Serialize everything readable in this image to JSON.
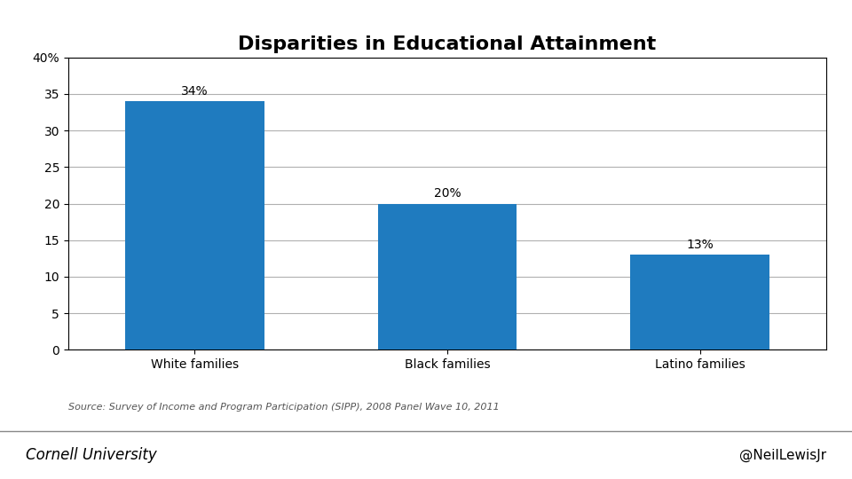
{
  "chart_data": {
    "type": "bar",
    "title": "Disparities in Educational Attainment",
    "categories": [
      "White families",
      "Black families",
      "Latino families"
    ],
    "values": [
      34,
      20,
      13
    ],
    "value_labels": [
      "34%",
      "20%",
      "13%"
    ],
    "data_labels": true,
    "color": "#1f7bbf",
    "ylim": [
      0,
      40
    ],
    "yticks": [
      0,
      5,
      10,
      15,
      20,
      25,
      30,
      35,
      {
        "value": 40,
        "label": "40%"
      }
    ],
    "grid": true,
    "source": "Source: Survey of Income and Program Participation (SIPP), 2008 Panel Wave 10, 2011",
    "annotations": [
      "Cornell University",
      "@NeilLewisJr"
    ]
  }
}
